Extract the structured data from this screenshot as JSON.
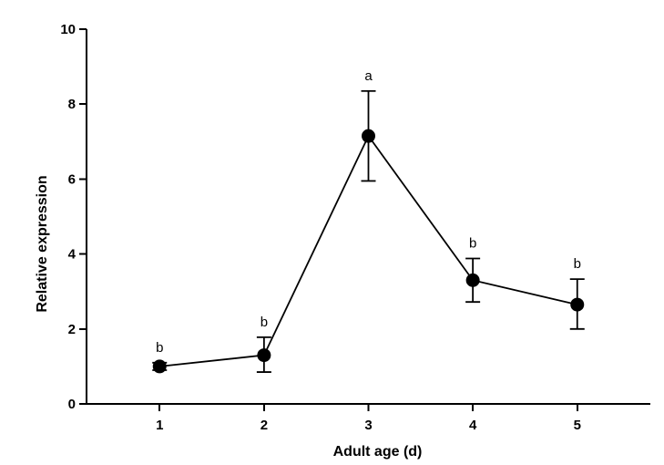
{
  "chart_data": {
    "type": "line",
    "title": "",
    "xlabel": "Adult age (d)",
    "ylabel": "Relative expression",
    "x": [
      1,
      2,
      3,
      4,
      5
    ],
    "xticks": [
      "1",
      "2",
      "3",
      "4",
      "5"
    ],
    "xlim": [
      0.3,
      5.7
    ],
    "ylim": [
      0,
      10
    ],
    "yticks": [
      "0",
      "2",
      "4",
      "6",
      "8",
      "10"
    ],
    "grid": false,
    "legend": "none",
    "series": [
      {
        "values": [
          1.0,
          1.3,
          7.15,
          3.3,
          2.65
        ],
        "error_lower": [
          0.9,
          0.85,
          5.95,
          2.72,
          2.0
        ],
        "error_upper": [
          1.1,
          1.78,
          8.35,
          3.88,
          3.33
        ],
        "significance": [
          "b",
          "b",
          "a",
          "b",
          "b"
        ],
        "color": "#000000"
      }
    ]
  }
}
